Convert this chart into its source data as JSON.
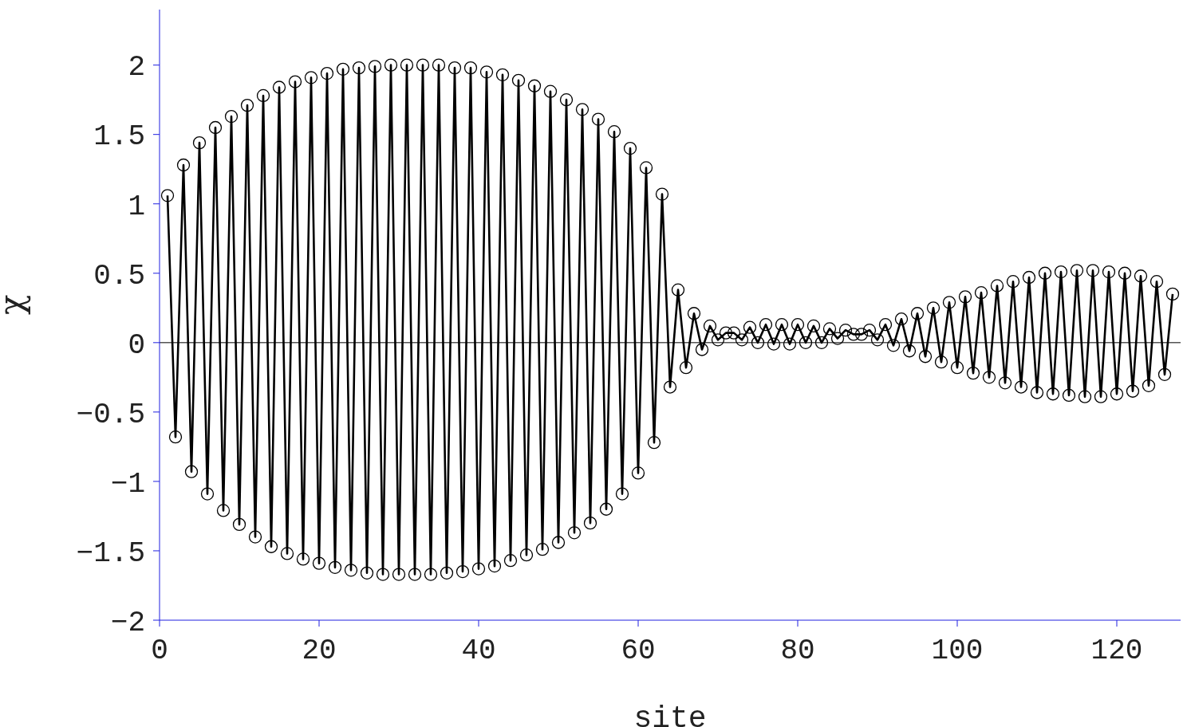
{
  "chart_data": {
    "type": "line",
    "xlabel": "site",
    "ylabel": "χ",
    "xlim": [
      0,
      128
    ],
    "xticks": [
      0,
      20,
      40,
      60,
      80,
      100,
      120
    ],
    "ylim": [
      -2,
      2.4
    ],
    "yticks": [
      -2,
      -1.5,
      -1,
      -0.5,
      0,
      0.5,
      1,
      1.5,
      2
    ],
    "grid": false,
    "legend": false,
    "marker": "circle",
    "line_style": "solid",
    "ref_lines": [
      {
        "axis": "y",
        "value": 0,
        "color": "#555555"
      }
    ],
    "series": [
      {
        "color": "#000000",
        "x": [
          1,
          2,
          3,
          4,
          5,
          6,
          7,
          8,
          9,
          10,
          11,
          12,
          13,
          14,
          15,
          16,
          17,
          18,
          19,
          20,
          21,
          22,
          23,
          24,
          25,
          26,
          27,
          28,
          29,
          30,
          31,
          32,
          33,
          34,
          35,
          36,
          37,
          38,
          39,
          40,
          41,
          42,
          43,
          44,
          45,
          46,
          47,
          48,
          49,
          50,
          51,
          52,
          53,
          54,
          55,
          56,
          57,
          58,
          59,
          60,
          61,
          62,
          63,
          64,
          65,
          66,
          67,
          68,
          69,
          70,
          71,
          72,
          73,
          74,
          75,
          76,
          77,
          78,
          79,
          80,
          81,
          82,
          83,
          84,
          85,
          86,
          87,
          88,
          89,
          90,
          91,
          92,
          93,
          94,
          95,
          96,
          97,
          98,
          99,
          100,
          101,
          102,
          103,
          104,
          105,
          106,
          107,
          108,
          109,
          110,
          111,
          112,
          113,
          114,
          115,
          116,
          117,
          118,
          119,
          120,
          121,
          122,
          123,
          124,
          125,
          126,
          127
        ],
        "values": [
          1.06,
          -0.68,
          1.28,
          -0.93,
          1.44,
          -1.09,
          1.55,
          -1.21,
          1.63,
          -1.31,
          1.71,
          -1.4,
          1.78,
          -1.47,
          1.84,
          -1.52,
          1.88,
          -1.56,
          1.91,
          -1.59,
          1.94,
          -1.62,
          1.97,
          -1.64,
          1.98,
          -1.66,
          1.99,
          -1.67,
          2.0,
          -1.67,
          2.0,
          -1.67,
          2.0,
          -1.67,
          2.0,
          -1.66,
          1.98,
          -1.65,
          1.98,
          -1.63,
          1.95,
          -1.61,
          1.93,
          -1.57,
          1.89,
          -1.53,
          1.85,
          -1.49,
          1.81,
          -1.44,
          1.75,
          -1.37,
          1.68,
          -1.3,
          1.61,
          -1.2,
          1.52,
          -1.09,
          1.4,
          -0.94,
          1.26,
          -0.72,
          1.07,
          -0.32,
          0.38,
          -0.18,
          0.21,
          -0.05,
          0.12,
          0.02,
          0.07,
          0.07,
          0.02,
          0.11,
          0.0,
          0.13,
          -0.01,
          0.13,
          -0.01,
          0.13,
          0.0,
          0.12,
          0.0,
          0.1,
          0.03,
          0.09,
          0.06,
          0.06,
          0.09,
          0.02,
          0.13,
          -0.02,
          0.17,
          -0.06,
          0.21,
          -0.1,
          0.25,
          -0.14,
          0.29,
          -0.18,
          0.33,
          -0.22,
          0.36,
          -0.25,
          0.41,
          -0.29,
          0.44,
          -0.32,
          0.47,
          -0.36,
          0.5,
          -0.37,
          0.51,
          -0.38,
          0.52,
          -0.39,
          0.52,
          -0.39,
          0.51,
          -0.37,
          0.5,
          -0.35,
          0.48,
          -0.31,
          0.44,
          -0.23,
          0.35
        ]
      }
    ]
  }
}
